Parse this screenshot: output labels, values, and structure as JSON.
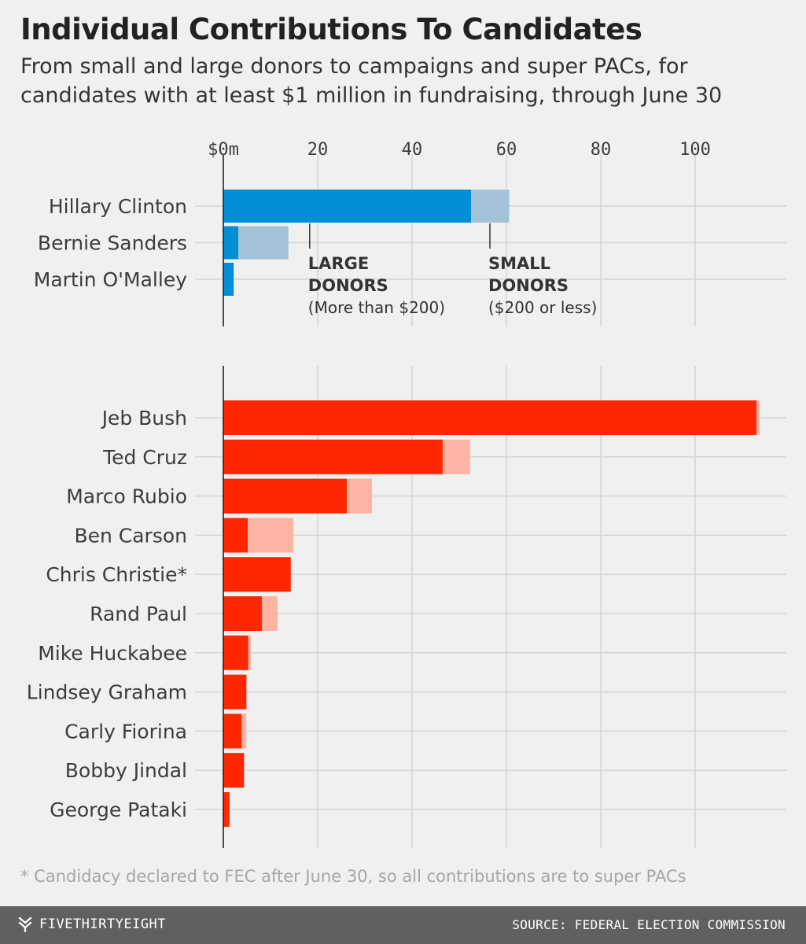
{
  "header": {
    "title": "Individual Contributions To Candidates",
    "subtitle": "From small and large donors to campaigns and super PACs, for candidates with at least $1 million in fundraising, through June 30"
  },
  "footnote": "* Candidacy declared to FEC after June 30, so all contributions are to super PACs",
  "footer": {
    "brand": "FIVETHIRTYEIGHT",
    "brand_icon": "fivethirtyeight-logo-icon",
    "source": "SOURCE: FEDERAL ELECTION COMMISSION"
  },
  "colors": {
    "dem_large": "#008fd5",
    "dem_small": "#a2c3d8",
    "rep_large": "#ff2700",
    "rep_small": "#ffb3a4",
    "grid": "#d4d4d4",
    "axis": "#222222",
    "background": "#f0f0f0",
    "footer_bar": "#5f6060"
  },
  "chart_data": [
    {
      "type": "bar",
      "orientation": "horizontal",
      "stacked": true,
      "categories": [
        "Hillary Clinton",
        "Bernie Sanders",
        "Martin O'Malley"
      ],
      "series": [
        {
          "name": "LARGE DONORS",
          "values": [
            52.5,
            3.2,
            2.2
          ]
        },
        {
          "name": "SMALL DONORS",
          "values": [
            8.1,
            10.6,
            0.0
          ]
        }
      ],
      "xlim": [
        0,
        115
      ],
      "xticks": [
        0,
        20,
        40,
        60,
        80,
        100
      ],
      "xtick_labels": [
        "$0m",
        "20",
        "40",
        "60",
        "80",
        "100"
      ],
      "grid": true,
      "annotations": [
        {
          "series": "LARGE DONORS",
          "label": "LARGE",
          "label2": "DONORS",
          "note": "(More than $200)",
          "x": 18.3
        },
        {
          "series": "SMALL DONORS",
          "label": "SMALL",
          "label2": "DONORS",
          "note": "($200 or less)",
          "x": 56.5
        }
      ]
    },
    {
      "type": "bar",
      "orientation": "horizontal",
      "stacked": true,
      "categories": [
        "Jeb Bush",
        "Ted Cruz",
        "Marco Rubio",
        "Ben Carson",
        "Chris Christie*",
        "Rand Paul",
        "Mike Huckabee",
        "Lindsey Graham",
        "Carly Fiorina",
        "Bobby Jindal",
        "George Pataki"
      ],
      "series": [
        {
          "name": "LARGE DONORS",
          "values": [
            113.0,
            46.5,
            26.2,
            5.2,
            14.3,
            8.2,
            5.3,
            4.9,
            3.9,
            4.4,
            1.3
          ]
        },
        {
          "name": "SMALL DONORS",
          "values": [
            0.7,
            5.8,
            5.3,
            9.7,
            0.0,
            3.3,
            0.5,
            0.0,
            1.0,
            0.0,
            0.0
          ]
        }
      ],
      "xlim": [
        0,
        115
      ],
      "xticks": [
        0,
        20,
        40,
        60,
        80,
        100
      ],
      "grid": true
    }
  ]
}
